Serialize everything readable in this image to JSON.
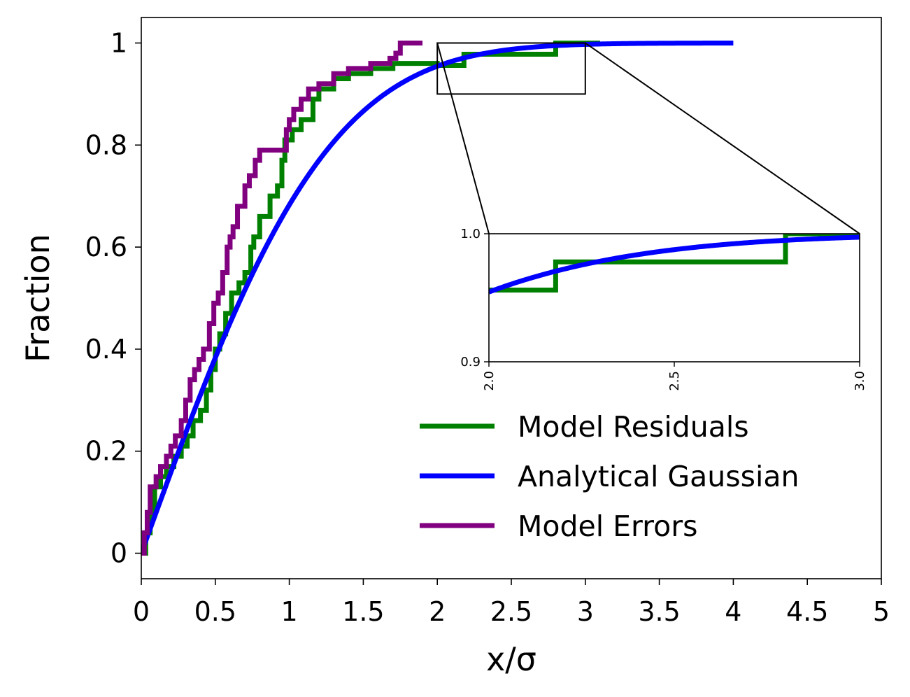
{
  "chart_data": [
    {
      "type": "line",
      "title": "",
      "xlabel": "x/σ",
      "ylabel": "Fraction",
      "xlim": [
        0,
        5
      ],
      "ylim": [
        -0.05,
        1.05
      ],
      "xticks": [
        0,
        0.5,
        1,
        1.5,
        2,
        2.5,
        3,
        3.5,
        4,
        4.5,
        5
      ],
      "xtick_labels": [
        "0",
        "0.5",
        "1",
        "1.5",
        "2",
        "2.5",
        "3",
        "3.5",
        "4",
        "4.5",
        "5"
      ],
      "yticks": [
        0,
        0.2,
        0.4,
        0.6,
        0.8,
        1
      ],
      "ytick_labels": [
        "0",
        "0.2",
        "0.4",
        "0.6",
        "0.8",
        "1"
      ],
      "grid": false,
      "legend_position": "lower-right",
      "series": [
        {
          "name": "Model Residuals",
          "color": "#008000",
          "step": true,
          "x": [
            0,
            0.03,
            0.06,
            0.09,
            0.13,
            0.17,
            0.22,
            0.27,
            0.31,
            0.35,
            0.4,
            0.44,
            0.47,
            0.5,
            0.53,
            0.57,
            0.61,
            0.66,
            0.7,
            0.74,
            0.76,
            0.8,
            0.87,
            0.92,
            0.95,
            0.97,
            1.02,
            1.08,
            1.16,
            1.2,
            1.3,
            1.4,
            1.55,
            1.7,
            2.0,
            2.18,
            2.8,
            3.1
          ],
          "y": [
            0,
            0.04,
            0.08,
            0.13,
            0.15,
            0.17,
            0.19,
            0.21,
            0.23,
            0.26,
            0.28,
            0.32,
            0.36,
            0.4,
            0.43,
            0.47,
            0.51,
            0.53,
            0.55,
            0.6,
            0.62,
            0.66,
            0.7,
            0.72,
            0.77,
            0.81,
            0.83,
            0.85,
            0.89,
            0.91,
            0.93,
            0.94,
            0.95,
            0.96,
            0.956,
            0.978,
            1.0,
            1.0
          ]
        },
        {
          "name": "Analytical Gaussian",
          "color": "#0000ff",
          "step": false,
          "function": "erf(x / sqrt(2))",
          "x_range": [
            0,
            4
          ]
        },
        {
          "name": "Model Errors",
          "color": "#800080",
          "step": true,
          "x": [
            0,
            0.02,
            0.04,
            0.06,
            0.1,
            0.13,
            0.17,
            0.2,
            0.23,
            0.27,
            0.3,
            0.33,
            0.36,
            0.39,
            0.42,
            0.46,
            0.49,
            0.52,
            0.55,
            0.58,
            0.6,
            0.62,
            0.65,
            0.7,
            0.73,
            0.77,
            0.8,
            0.85,
            0.98,
            1.0,
            1.03,
            1.08,
            1.13,
            1.2,
            1.3,
            1.4,
            1.55,
            1.68,
            1.72,
            1.75,
            1.9
          ],
          "y": [
            0,
            0.04,
            0.08,
            0.13,
            0.15,
            0.17,
            0.19,
            0.21,
            0.23,
            0.26,
            0.3,
            0.34,
            0.36,
            0.38,
            0.4,
            0.45,
            0.49,
            0.51,
            0.55,
            0.6,
            0.62,
            0.64,
            0.68,
            0.72,
            0.74,
            0.77,
            0.79,
            0.79,
            0.83,
            0.85,
            0.87,
            0.89,
            0.91,
            0.92,
            0.94,
            0.95,
            0.96,
            0.97,
            0.98,
            1.0,
            1.0
          ]
        }
      ]
    },
    {
      "type": "line",
      "title": "",
      "xlabel": "",
      "ylabel": "",
      "xlim": [
        2.0,
        3.0
      ],
      "ylim": [
        0.9,
        1.0
      ],
      "xticks": [
        2.0,
        2.5,
        3.0
      ],
      "xtick_labels": [
        "2.0",
        "2.5",
        "3.0"
      ],
      "yticks": [
        0.9,
        1.0
      ],
      "ytick_labels": [
        "0.9",
        "1.0"
      ],
      "xtick_rotation": 90,
      "grid": false,
      "zoom_region_of_main": {
        "x": [
          2.0,
          3.0
        ],
        "y": [
          0.9,
          1.0
        ]
      },
      "series": [
        {
          "name": "Model Residuals",
          "color": "#008000",
          "step": true,
          "x": [
            2.0,
            2.18,
            2.8,
            3.0
          ],
          "y": [
            0.956,
            0.978,
            1.0,
            1.0
          ]
        },
        {
          "name": "Analytical Gaussian",
          "color": "#0000ff",
          "step": false,
          "function": "erf(x / sqrt(2))",
          "x_range": [
            2.0,
            3.0
          ]
        }
      ]
    }
  ]
}
